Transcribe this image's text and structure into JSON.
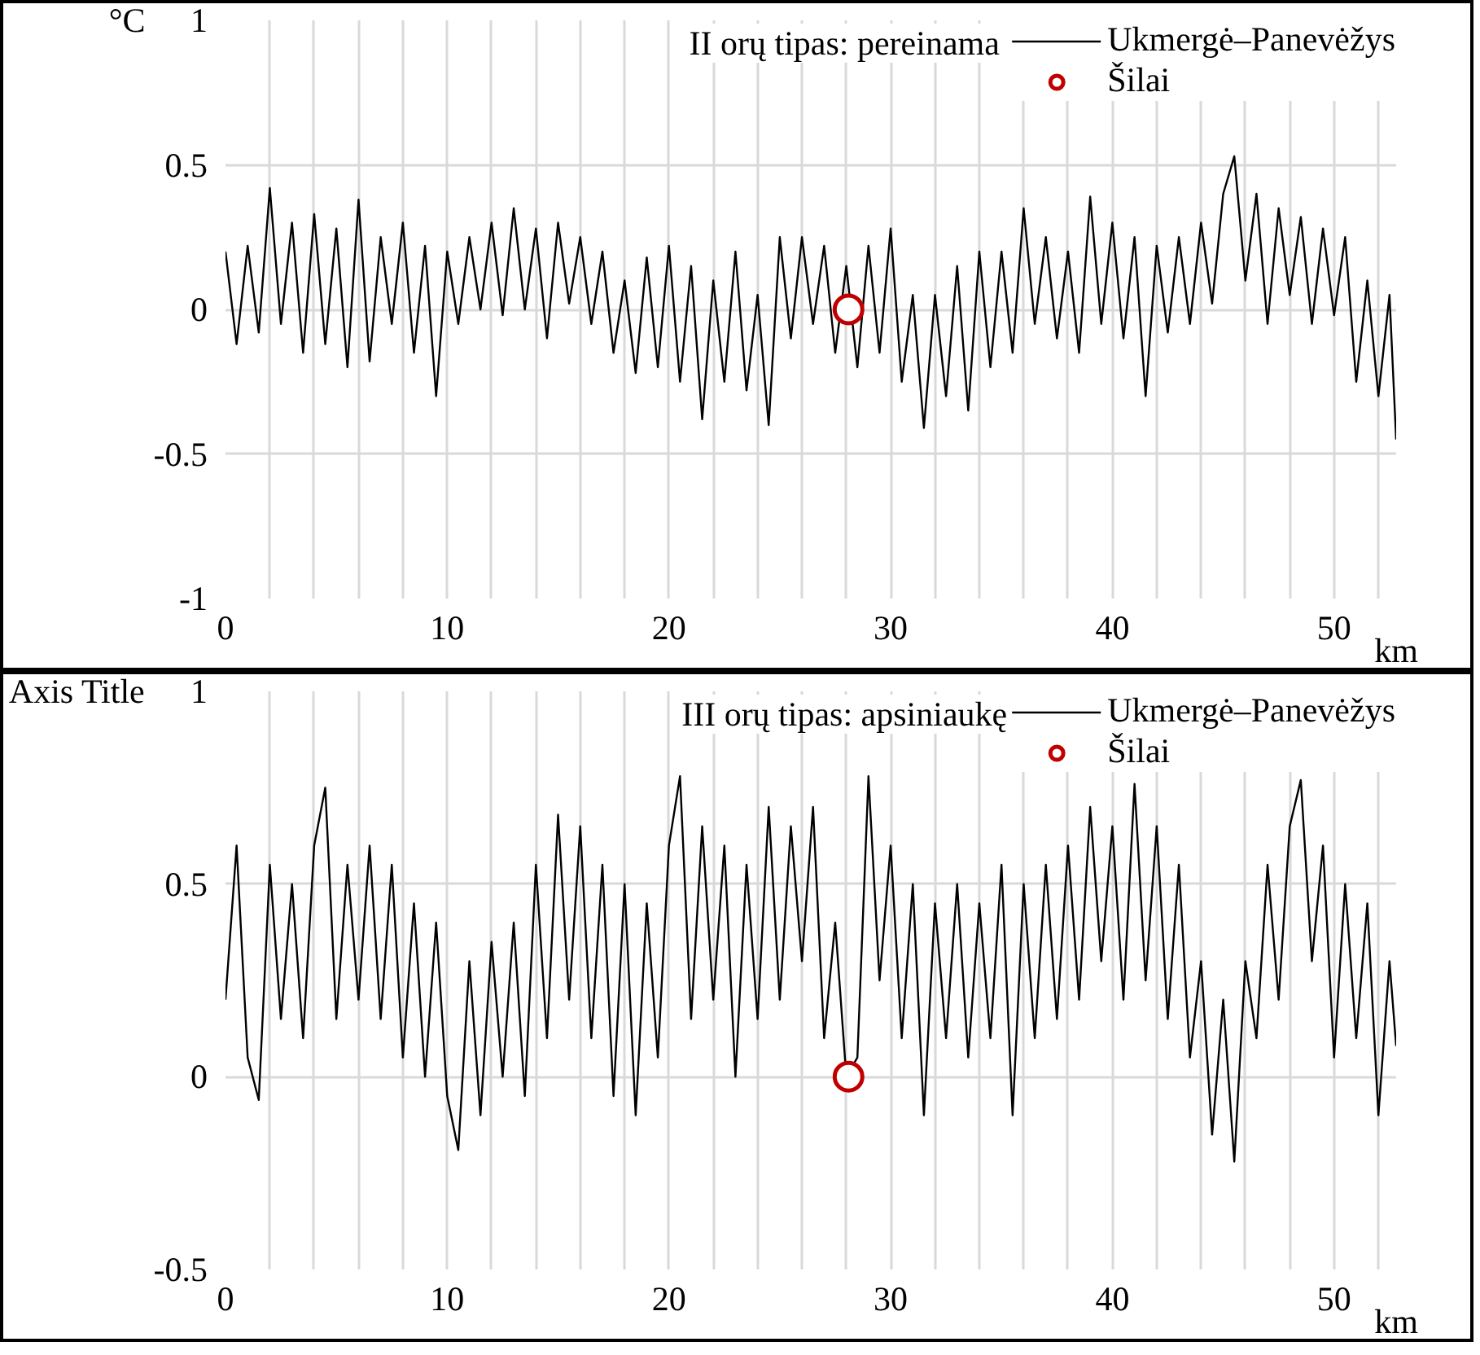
{
  "chart_data": [
    {
      "type": "line",
      "title": "II orų tipas: pereinama",
      "xlabel": "km",
      "ylabel": "°C",
      "xlim": [
        0,
        52.8
      ],
      "xticks": [
        0,
        {
          "value": 2,
          "label": null
        },
        {
          "value": 4,
          "label": null
        },
        {
          "value": 6,
          "label": null
        },
        {
          "value": 8,
          "label": null
        },
        10,
        {
          "value": 12,
          "label": null
        },
        {
          "value": 14,
          "label": null
        },
        {
          "value": 16,
          "label": null
        },
        {
          "value": 18,
          "label": null
        },
        20,
        {
          "value": 22,
          "label": null
        },
        {
          "value": 24,
          "label": null
        },
        {
          "value": 26,
          "label": null
        },
        {
          "value": 28,
          "label": null
        },
        30,
        {
          "value": 32,
          "label": null
        },
        {
          "value": 34,
          "label": null
        },
        {
          "value": 36,
          "label": null
        },
        {
          "value": 38,
          "label": null
        },
        40,
        {
          "value": 42,
          "label": null
        },
        {
          "value": 44,
          "label": null
        },
        {
          "value": 46,
          "label": null
        },
        {
          "value": 48,
          "label": null
        },
        50,
        {
          "value": 52,
          "label": null
        }
      ],
      "ylim": [
        -1,
        1
      ],
      "yticks": [
        -1,
        -0.5,
        0,
        0.5,
        1
      ],
      "grid": true,
      "legend": "top right",
      "x": [
        0,
        0.5,
        1,
        1.5,
        2,
        2.5,
        3,
        3.5,
        4,
        4.5,
        5,
        5.5,
        6,
        6.5,
        7,
        7.5,
        8,
        8.5,
        9,
        9.5,
        10,
        10.5,
        11,
        11.5,
        12,
        12.5,
        13,
        13.5,
        14,
        14.5,
        15,
        15.5,
        16,
        16.5,
        17,
        17.5,
        18,
        18.5,
        19,
        19.5,
        20,
        20.5,
        21,
        21.5,
        22,
        22.5,
        23,
        23.5,
        24,
        24.5,
        25,
        25.5,
        26,
        26.5,
        27,
        27.5,
        28,
        28.5,
        29,
        29.5,
        30,
        30.5,
        31,
        31.5,
        32,
        32.5,
        33,
        33.5,
        34,
        34.5,
        35,
        35.5,
        36,
        36.5,
        37,
        37.5,
        38,
        38.5,
        39,
        39.5,
        40,
        40.5,
        41,
        41.5,
        42,
        42.5,
        43,
        43.5,
        44,
        44.5,
        45,
        45.5,
        46,
        46.5,
        47,
        47.5,
        48,
        48.5,
        49,
        49.5,
        50,
        50.5,
        51,
        51.5,
        52,
        52.5,
        52.8
      ],
      "series": [
        {
          "name": "Ukmergė–Panevėžys",
          "color": "#000000",
          "values": [
            0.2,
            -0.12,
            0.22,
            -0.08,
            0.42,
            -0.05,
            0.3,
            -0.15,
            0.33,
            -0.12,
            0.28,
            -0.2,
            0.38,
            -0.18,
            0.25,
            -0.05,
            0.3,
            -0.15,
            0.22,
            -0.3,
            0.2,
            -0.05,
            0.25,
            0.0,
            0.3,
            -0.02,
            0.35,
            0.0,
            0.28,
            -0.1,
            0.3,
            0.02,
            0.25,
            -0.05,
            0.2,
            -0.15,
            0.1,
            -0.22,
            0.18,
            -0.2,
            0.22,
            -0.25,
            0.15,
            -0.38,
            0.1,
            -0.25,
            0.2,
            -0.28,
            0.05,
            -0.4,
            0.25,
            -0.1,
            0.25,
            -0.05,
            0.22,
            -0.15,
            0.15,
            -0.2,
            0.22,
            -0.15,
            0.28,
            -0.25,
            0.05,
            -0.41,
            0.05,
            -0.3,
            0.15,
            -0.35,
            0.2,
            -0.2,
            0.2,
            -0.15,
            0.35,
            -0.05,
            0.25,
            -0.1,
            0.2,
            -0.15,
            0.39,
            -0.05,
            0.3,
            -0.1,
            0.25,
            -0.3,
            0.22,
            -0.08,
            0.25,
            -0.05,
            0.3,
            0.02,
            0.4,
            0.53,
            0.1,
            0.4,
            -0.05,
            0.35,
            0.05,
            0.32,
            -0.05,
            0.28,
            -0.02,
            0.25,
            -0.25,
            0.1,
            -0.3,
            0.05,
            -0.45
          ]
        },
        {
          "name": "Šilai",
          "type": "scatter",
          "marker": "circle",
          "color": "#c00000",
          "x": [
            28.1
          ],
          "values": [
            0
          ]
        }
      ]
    },
    {
      "type": "line",
      "title": "III orų tipas: apsiniaukę",
      "xlabel": "km",
      "ylabel": "Axis Title",
      "xlim": [
        0,
        52.8
      ],
      "xticks": [
        0,
        {
          "value": 2,
          "label": null
        },
        {
          "value": 4,
          "label": null
        },
        {
          "value": 6,
          "label": null
        },
        {
          "value": 8,
          "label": null
        },
        10,
        {
          "value": 12,
          "label": null
        },
        {
          "value": 14,
          "label": null
        },
        {
          "value": 16,
          "label": null
        },
        {
          "value": 18,
          "label": null
        },
        20,
        {
          "value": 22,
          "label": null
        },
        {
          "value": 24,
          "label": null
        },
        {
          "value": 26,
          "label": null
        },
        {
          "value": 28,
          "label": null
        },
        30,
        {
          "value": 32,
          "label": null
        },
        {
          "value": 34,
          "label": null
        },
        {
          "value": 36,
          "label": null
        },
        {
          "value": 38,
          "label": null
        },
        40,
        {
          "value": 42,
          "label": null
        },
        {
          "value": 44,
          "label": null
        },
        {
          "value": 46,
          "label": null
        },
        {
          "value": 48,
          "label": null
        },
        50,
        {
          "value": 52,
          "label": null
        }
      ],
      "ylim": [
        -0.5,
        1
      ],
      "yticks": [
        -0.5,
        0,
        0.5,
        1
      ],
      "grid": true,
      "legend": "top right",
      "x": [
        0,
        0.5,
        1,
        1.5,
        2,
        2.5,
        3,
        3.5,
        4,
        4.5,
        5,
        5.5,
        6,
        6.5,
        7,
        7.5,
        8,
        8.5,
        9,
        9.5,
        10,
        10.5,
        11,
        11.5,
        12,
        12.5,
        13,
        13.5,
        14,
        14.5,
        15,
        15.5,
        16,
        16.5,
        17,
        17.5,
        18,
        18.5,
        19,
        19.5,
        20,
        20.5,
        21,
        21.5,
        22,
        22.5,
        23,
        23.5,
        24,
        24.5,
        25,
        25.5,
        26,
        26.5,
        27,
        27.5,
        28,
        28.5,
        29,
        29.5,
        30,
        30.5,
        31,
        31.5,
        32,
        32.5,
        33,
        33.5,
        34,
        34.5,
        35,
        35.5,
        36,
        36.5,
        37,
        37.5,
        38,
        38.5,
        39,
        39.5,
        40,
        40.5,
        41,
        41.5,
        42,
        42.5,
        43,
        43.5,
        44,
        44.5,
        45,
        45.5,
        46,
        46.5,
        47,
        47.5,
        48,
        48.5,
        49,
        49.5,
        50,
        50.5,
        51,
        51.5,
        52,
        52.5,
        52.8
      ],
      "series": [
        {
          "name": "Ukmergė–Panevėžys",
          "color": "#000000",
          "values": [
            0.2,
            0.6,
            0.05,
            -0.06,
            0.55,
            0.15,
            0.5,
            0.1,
            0.6,
            0.75,
            0.15,
            0.55,
            0.2,
            0.6,
            0.15,
            0.55,
            0.05,
            0.45,
            0.0,
            0.4,
            -0.05,
            -0.19,
            0.3,
            -0.1,
            0.35,
            0.0,
            0.4,
            -0.05,
            0.55,
            0.1,
            0.68,
            0.2,
            0.65,
            0.1,
            0.55,
            -0.05,
            0.5,
            -0.1,
            0.45,
            0.05,
            0.6,
            0.78,
            0.15,
            0.65,
            0.2,
            0.6,
            0.0,
            0.55,
            0.15,
            0.7,
            0.2,
            0.65,
            0.3,
            0.7,
            0.1,
            0.4,
            0.0,
            0.05,
            0.78,
            0.25,
            0.6,
            0.1,
            0.5,
            -0.1,
            0.45,
            0.1,
            0.5,
            0.05,
            0.45,
            0.1,
            0.55,
            -0.1,
            0.5,
            0.1,
            0.55,
            0.15,
            0.6,
            0.2,
            0.7,
            0.3,
            0.65,
            0.2,
            0.76,
            0.25,
            0.65,
            0.15,
            0.55,
            0.05,
            0.3,
            -0.15,
            0.2,
            -0.22,
            0.3,
            0.1,
            0.55,
            0.2,
            0.65,
            0.77,
            0.3,
            0.6,
            0.05,
            0.5,
            0.1,
            0.45,
            -0.1,
            0.3,
            0.08
          ]
        },
        {
          "name": "Šilai",
          "type": "scatter",
          "marker": "circle",
          "color": "#c00000",
          "x": [
            28.1
          ],
          "values": [
            0
          ]
        }
      ]
    }
  ]
}
